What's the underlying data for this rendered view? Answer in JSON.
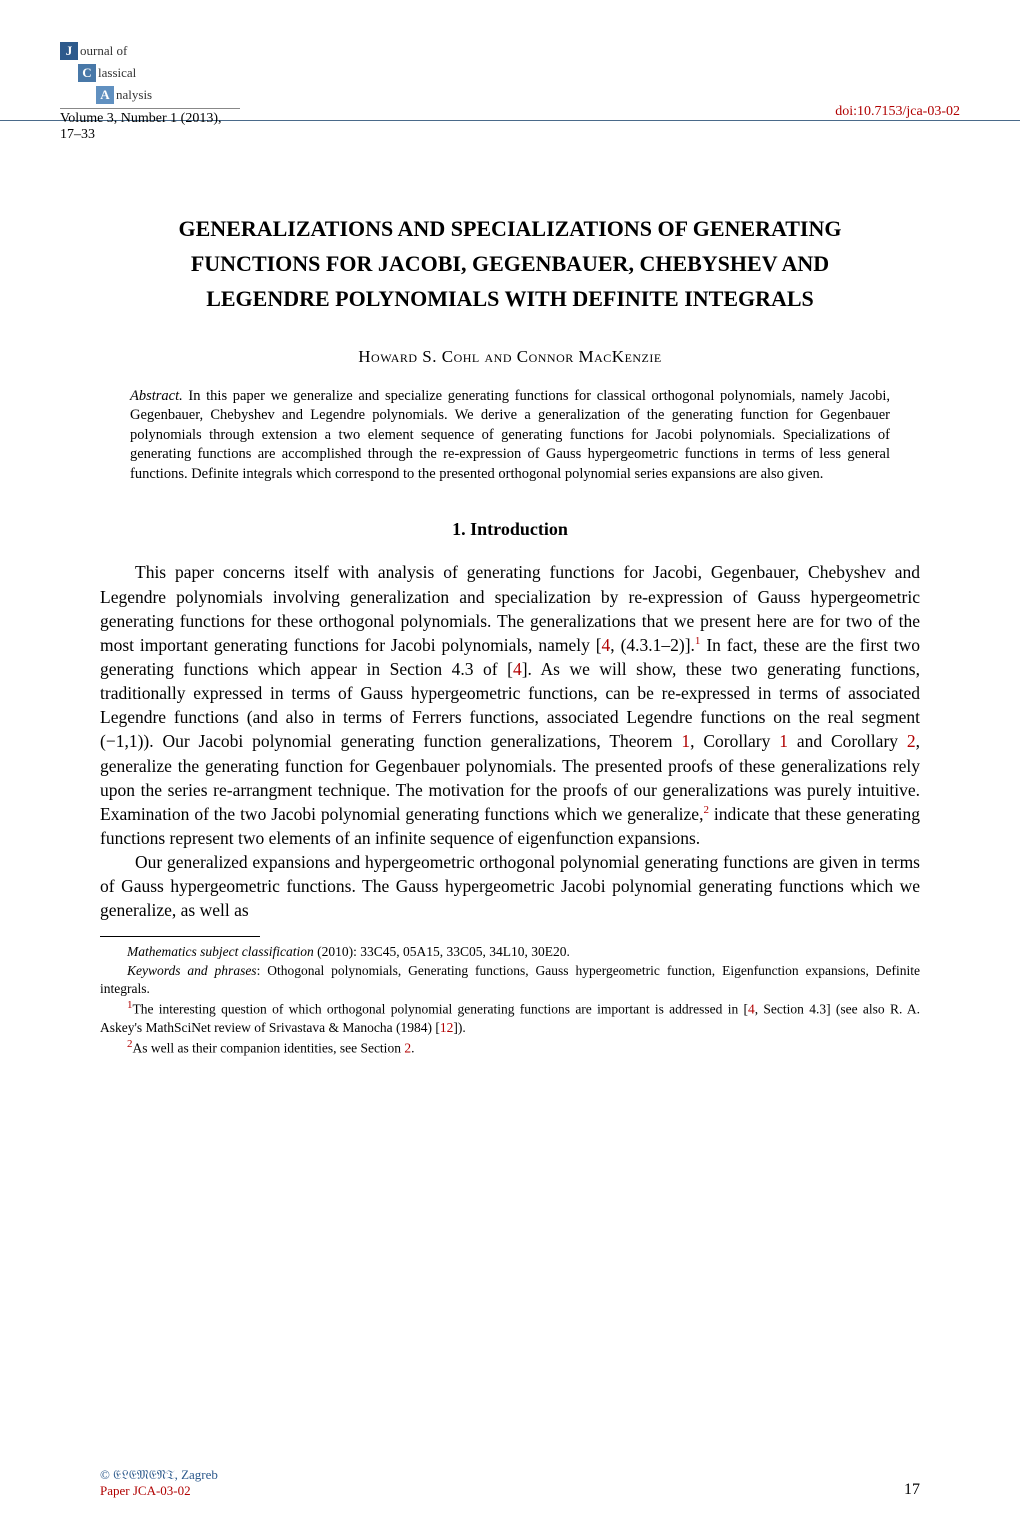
{
  "journal": {
    "logo_j": "J",
    "logo_j_text": "ournal of",
    "logo_c": "C",
    "logo_c_text": "lassical",
    "logo_a": "A",
    "logo_a_text": "nalysis",
    "volume_line": "Volume 3, Number 1 (2013), 17–33",
    "doi": "doi:10.7153/jca-03-02"
  },
  "title": {
    "line1": "GENERALIZATIONS AND SPECIALIZATIONS OF GENERATING",
    "line2": "FUNCTIONS FOR JACOBI, GEGENBAUER, CHEBYSHEV AND",
    "line3": "LEGENDRE POLYNOMIALS WITH DEFINITE INTEGRALS"
  },
  "authors": "Howard S. Cohl and Connor MacKenzie",
  "abstract": {
    "label": "Abstract.",
    "text": " In this paper we generalize and specialize generating functions for classical orthogonal polynomials, namely Jacobi, Gegenbauer, Chebyshev and Legendre polynomials. We derive a generalization of the generating function for Gegenbauer polynomials through extension a two element sequence of generating functions for Jacobi polynomials. Specializations of generating functions are accomplished through the re-expression of Gauss hypergeometric functions in terms of less general functions. Definite integrals which correspond to the presented orthogonal polynomial series expansions are also given."
  },
  "section1": {
    "heading": "1. Introduction",
    "p1a": "This paper concerns itself with analysis of generating functions for Jacobi, Gegenbauer, Chebyshev and Legendre polynomials involving generalization and specialization by re-expression of Gauss hypergeometric generating functions for these orthogonal polynomials. The generalizations that we present here are for two of the most important generating functions for Jacobi polynomials, namely [",
    "ref4a": "4",
    "p1b": ", (4.3.1–2)].",
    "sup1": "1",
    "p1c": " In fact, these are the first two generating functions which appear in Section 4.3 of [",
    "ref4b": "4",
    "p1d": "]. As we will show, these two generating functions, traditionally expressed in terms of Gauss hypergeometric functions, can be re-expressed in terms of associated Legendre functions (and also in terms of Ferrers functions, associated Legendre functions on the real segment (−1,1)). Our Jacobi polynomial generating function generalizations, Theorem ",
    "thm1": "1",
    "p1e": ", Corollary ",
    "cor1": "1",
    "p1f": " and Corollary ",
    "cor2": "2",
    "p1g": ", generalize the generating function for Gegenbauer polynomials. The presented proofs of these generalizations rely upon the series re-arrangment technique. The motivation for the proofs of our generalizations was purely intuitive. Examination of the two Jacobi polynomial generating functions which we generalize,",
    "sup2": "2",
    "p1h": " indicate that these generating functions represent two elements of an infinite sequence of eigenfunction expansions.",
    "p2": "Our generalized expansions and hypergeometric orthogonal polynomial generating functions are given in terms of Gauss hypergeometric functions. The Gauss hypergeometric Jacobi polynomial generating functions which we generalize, as well as"
  },
  "footnotes": {
    "msc_label": "Mathematics subject classification",
    "msc_text": " (2010): 33C45, 05A15, 33C05, 34L10, 30E20.",
    "kw_label": "Keywords and phrases",
    "kw_text": ": Othogonal polynomials, Generating functions, Gauss hypergeometric function, Eigenfunction expansions, Definite integrals.",
    "fn1_num": "1",
    "fn1a": "The interesting question of which orthogonal polynomial generating functions are important is addressed in [",
    "fn1_ref4": "4",
    "fn1b": ", Section 4.3] (see also R. A. Askey's MathSciNet review of Srivastava & Manocha (1984) [",
    "fn1_ref12": "12",
    "fn1c": "]).",
    "fn2_num": "2",
    "fn2a": "As well as their companion identities, see Section ",
    "fn2_sec": "2",
    "fn2b": "."
  },
  "footer": {
    "copyright": "© 𝔈𝔏𝔈𝔐𝔈𝔑𝔗, Zagreb",
    "paperid": "Paper JCA-03-02",
    "page": "17"
  },
  "colors": {
    "link_red": "#b00000",
    "logo_blue_dark": "#2d5a8c",
    "logo_blue_mid": "#4878a8",
    "logo_blue_light": "#6090c0",
    "header_rule": "#4a6a8a"
  }
}
